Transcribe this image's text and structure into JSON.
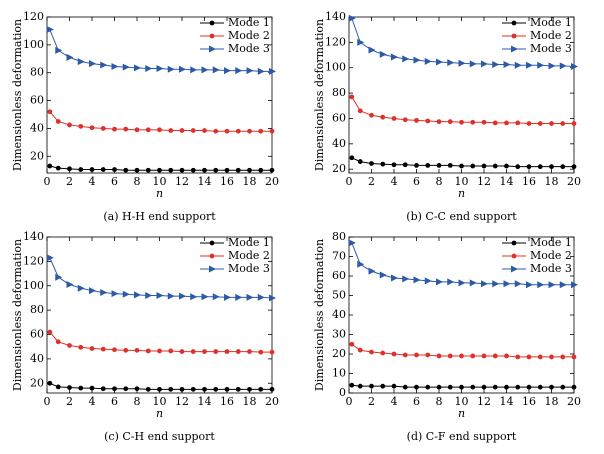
{
  "chart_data": [
    {
      "type": "line",
      "caption": "(a) H-H end support",
      "xlabel": "n",
      "ylabel": "Dimensionless deformation",
      "x": [
        0.25,
        1,
        2,
        3,
        4,
        5,
        6,
        7,
        8,
        9,
        10,
        11,
        12,
        13,
        14,
        15,
        16,
        17,
        18,
        19,
        20
      ],
      "xlim": [
        0,
        20
      ],
      "xticks": [
        0,
        2,
        4,
        6,
        8,
        10,
        12,
        14,
        16,
        18,
        20
      ],
      "ylim": [
        8,
        120
      ],
      "yticks": [
        20,
        40,
        60,
        80,
        100,
        120
      ],
      "legend": "upper right",
      "series": [
        {
          "name": "Mode 1",
          "color": "#000000",
          "marker": "circle",
          "values": [
            13,
            11.5,
            11,
            10.5,
            10.5,
            10.5,
            10.5,
            10,
            10,
            10,
            10,
            10,
            10,
            10,
            10,
            10,
            10,
            10,
            10,
            10,
            10
          ]
        },
        {
          "name": "Mode 2",
          "color": "#e0302a",
          "marker": "circle",
          "values": [
            52,
            45,
            42.5,
            41.5,
            40.5,
            40,
            39.5,
            39.5,
            39,
            39,
            39,
            38.5,
            38.5,
            38.5,
            38.5,
            38,
            38,
            38,
            38,
            38,
            38
          ]
        },
        {
          "name": "Mode 3",
          "color": "#2c5aa8",
          "marker": "triangle",
          "values": [
            111,
            96,
            91,
            88,
            86.5,
            85.5,
            84.5,
            84,
            83.5,
            83,
            83,
            82.5,
            82.5,
            82,
            82,
            82,
            81.5,
            81.5,
            81.5,
            81,
            81
          ]
        }
      ]
    },
    {
      "type": "line",
      "caption": "(b) C-C end support",
      "xlabel": "n",
      "ylabel": "Dimensionless deformation",
      "x": [
        0.25,
        1,
        2,
        3,
        4,
        5,
        6,
        7,
        8,
        9,
        10,
        11,
        12,
        13,
        14,
        15,
        16,
        17,
        18,
        19,
        20
      ],
      "xlim": [
        0,
        20
      ],
      "xticks": [
        0,
        2,
        4,
        6,
        8,
        10,
        12,
        14,
        16,
        18,
        20
      ],
      "ylim": [
        17,
        140
      ],
      "yticks": [
        20,
        40,
        60,
        80,
        100,
        120,
        140
      ],
      "legend": "upper right",
      "series": [
        {
          "name": "Mode 1",
          "color": "#000000",
          "marker": "circle",
          "values": [
            29,
            26,
            24.5,
            24,
            23.5,
            23.5,
            23,
            23,
            23,
            23,
            22.5,
            22.5,
            22.5,
            22.5,
            22.5,
            22,
            22,
            22,
            22,
            22,
            22
          ]
        },
        {
          "name": "Mode 2",
          "color": "#e0302a",
          "marker": "circle",
          "values": [
            77,
            66,
            62.5,
            61,
            60,
            59,
            58.5,
            58,
            57.5,
            57.5,
            57,
            57,
            57,
            56.5,
            56.5,
            56.5,
            56,
            56,
            56,
            56,
            56
          ]
        },
        {
          "name": "Mode 3",
          "color": "#2c5aa8",
          "marker": "triangle",
          "values": [
            139,
            120,
            114,
            110.5,
            108.5,
            107,
            106,
            105,
            104.5,
            104,
            103.5,
            103,
            103,
            102.5,
            102.5,
            102,
            102,
            102,
            101.5,
            101.5,
            101
          ]
        }
      ]
    },
    {
      "type": "line",
      "caption": "(c) C-H end support",
      "xlabel": "n",
      "ylabel": "Dimensionless deformation",
      "x": [
        0.25,
        1,
        2,
        3,
        4,
        5,
        6,
        7,
        8,
        9,
        10,
        11,
        12,
        13,
        14,
        15,
        16,
        17,
        18,
        19,
        20
      ],
      "xlim": [
        0,
        20
      ],
      "xticks": [
        0,
        2,
        4,
        6,
        8,
        10,
        12,
        14,
        16,
        18,
        20
      ],
      "ylim": [
        12,
        140
      ],
      "yticks": [
        20,
        40,
        60,
        80,
        100,
        120,
        140
      ],
      "legend": "upper right",
      "series": [
        {
          "name": "Mode 1",
          "color": "#000000",
          "marker": "circle",
          "values": [
            20,
            17,
            16.5,
            16,
            16,
            15.5,
            15.5,
            15.5,
            15.5,
            15,
            15,
            15,
            15,
            15,
            15,
            15,
            15,
            15,
            15,
            15,
            15
          ]
        },
        {
          "name": "Mode 2",
          "color": "#e0302a",
          "marker": "circle",
          "values": [
            62,
            54,
            51,
            49.5,
            48.5,
            48,
            47.5,
            47,
            47,
            46.5,
            46.5,
            46.5,
            46,
            46,
            46,
            46,
            46,
            46,
            46,
            45.5,
            45.5
          ]
        },
        {
          "name": "Mode 3",
          "color": "#2c5aa8",
          "marker": "triangle",
          "values": [
            123,
            107,
            101,
            98,
            96,
            94.5,
            93.5,
            93,
            92.5,
            92,
            92,
            91.5,
            91.5,
            91,
            91,
            91,
            90.5,
            90.5,
            90.5,
            90.5,
            90
          ]
        }
      ]
    },
    {
      "type": "line",
      "caption": "(d) C-F end support",
      "xlabel": "n",
      "ylabel": "Dimensionless deformation",
      "x": [
        0.25,
        1,
        2,
        3,
        4,
        5,
        6,
        7,
        8,
        9,
        10,
        11,
        12,
        13,
        14,
        15,
        16,
        17,
        18,
        19,
        20
      ],
      "xlim": [
        0,
        20
      ],
      "xticks": [
        0,
        2,
        4,
        6,
        8,
        10,
        12,
        14,
        16,
        18,
        20
      ],
      "ylim": [
        0,
        80
      ],
      "yticks": [
        0,
        10,
        20,
        30,
        40,
        50,
        60,
        70,
        80
      ],
      "legend": "upper right",
      "series": [
        {
          "name": "Mode 1",
          "color": "#000000",
          "marker": "circle",
          "values": [
            4,
            3.5,
            3.5,
            3.5,
            3.5,
            3,
            3,
            3,
            3,
            3,
            3,
            3,
            3,
            3,
            3,
            3,
            3,
            3,
            3,
            3,
            3
          ]
        },
        {
          "name": "Mode 2",
          "color": "#e0302a",
          "marker": "circle",
          "values": [
            25,
            22,
            21,
            20.5,
            20,
            19.5,
            19.5,
            19.5,
            19,
            19,
            19,
            19,
            19,
            19,
            19,
            18.5,
            18.5,
            18.5,
            18.5,
            18.5,
            18.5
          ]
        },
        {
          "name": "Mode 3",
          "color": "#2c5aa8",
          "marker": "triangle",
          "values": [
            77,
            66,
            62.5,
            60.5,
            59,
            58.5,
            58,
            57.5,
            57,
            57,
            56.5,
            56.5,
            56,
            56,
            56,
            56,
            55.5,
            55.5,
            55.5,
            55.5,
            55.5
          ]
        }
      ]
    }
  ]
}
